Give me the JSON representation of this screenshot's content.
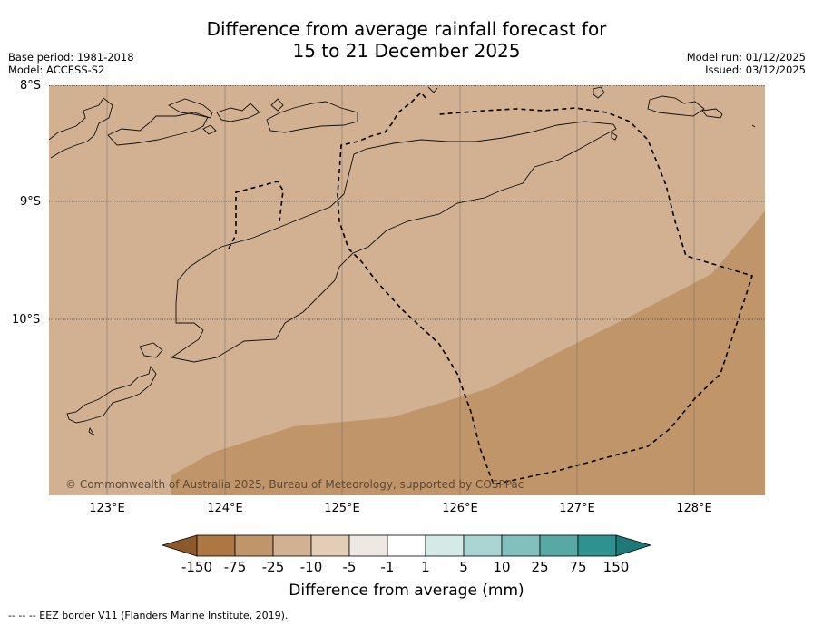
{
  "header": {
    "title_line1": "Difference from average rainfall forecast for",
    "title_line2": "15 to 21 December 2025",
    "base_period": "Base period: 1981-2018",
    "model": "Model: ACCESS-S2",
    "model_run": "Model run: 01/12/2025",
    "issued": "Issued: 03/12/2025"
  },
  "map": {
    "lat_labels": [
      "8°S",
      "9°S",
      "10°S"
    ],
    "lon_labels": [
      "123°E",
      "124°E",
      "125°E",
      "126°E",
      "127°E",
      "128°E"
    ],
    "credit": "© Commonwealth of Australia 2025, Bureau of Meteorology, supported by COSPPac",
    "categories": {
      "light_dry": {
        "range": "-25 to -10 mm",
        "color": "#d1b192"
      },
      "mid_dry": {
        "range": "-75 to -25 mm",
        "color": "#c0956a"
      }
    }
  },
  "colorbar": {
    "ticks": [
      "-150",
      "-75",
      "-25",
      "-10",
      "-5",
      "-1",
      "1",
      "5",
      "10",
      "25",
      "75",
      "150"
    ],
    "colors": [
      "#8c5a2a",
      "#ad7642",
      "#c0956a",
      "#d1b192",
      "#e3cdb6",
      "#eee8e2",
      "#ffffff",
      "#d3eae6",
      "#a9d5d2",
      "#80c0bd",
      "#57a9a6",
      "#2e9390",
      "#1d7a78"
    ],
    "title": "Difference from average (mm)"
  },
  "footnote": "--  --  -- EEZ border V11 (Flanders Marine Institute, 2019)."
}
